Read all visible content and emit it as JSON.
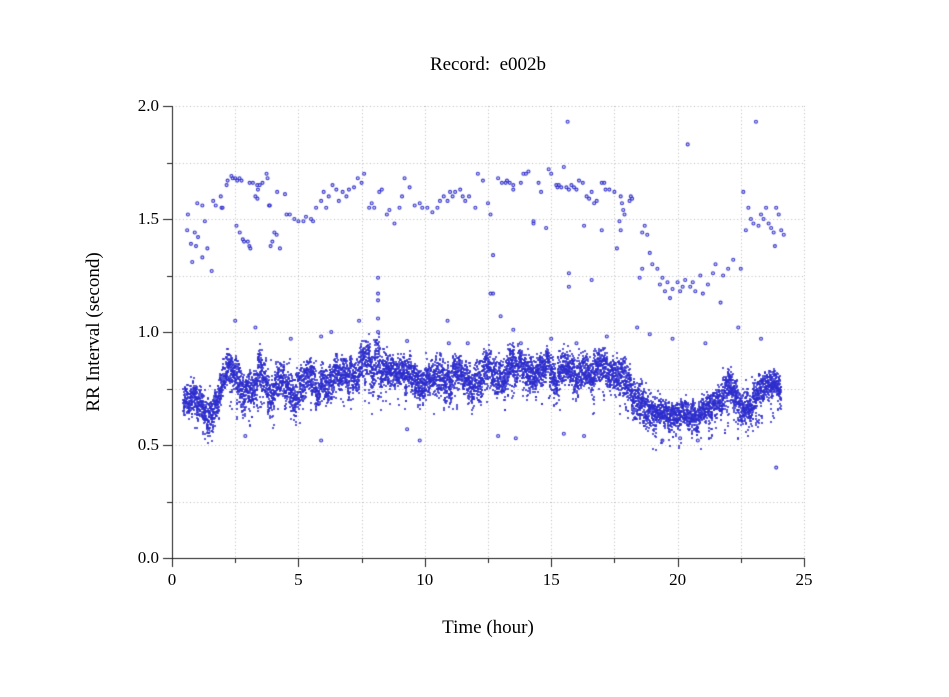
{
  "title": "Record:  e002b",
  "x_axis": {
    "label": "Time (hour)",
    "min": 0,
    "max": 25,
    "major_ticks": [
      0,
      5,
      10,
      15,
      20,
      25
    ],
    "major_tick_labels": [
      "0",
      "5",
      "10",
      "15",
      "20",
      "25"
    ],
    "minor_tick_step": 2.5
  },
  "y_axis": {
    "label": "RR Interval (second)",
    "min": 0.0,
    "max": 2.0,
    "major_ticks": [
      0.0,
      0.5,
      1.0,
      1.5,
      2.0
    ],
    "major_tick_labels": [
      "0.0",
      "0.5",
      "1.0",
      "1.5",
      "2.0"
    ],
    "minor_tick_step": 0.25
  },
  "colors": {
    "point_blue": "#2d2dcd",
    "grid_gray": "#b9b9b9",
    "axis_black": "#1a1a1a",
    "background": "#ffffff",
    "text": "#000000"
  },
  "chart_data": {
    "type": "scatter",
    "title": "Record:  e002b",
    "xlabel": "Time (hour)",
    "ylabel": "RR Interval (second)",
    "xlim": [
      0,
      25
    ],
    "ylim": [
      0.0,
      2.0
    ],
    "grid": "dotted gridlines at every major and minor tick; solid left and bottom axes only",
    "marker": "small open blue circles, ~3px",
    "note": "Dense normal-beat band is described by band_envelope control points [t_hour, rr_low, rr_high]; it is rendered as ~9000 overlapping points. sparse_points are the individually resolvable dots [t_hour, rr_second].",
    "band_time_range": [
      0.45,
      24.1
    ],
    "band_envelope": [
      [
        0.45,
        0.63,
        0.79
      ],
      [
        1.0,
        0.6,
        0.78
      ],
      [
        1.3,
        0.55,
        0.74
      ],
      [
        1.6,
        0.58,
        0.76
      ],
      [
        1.9,
        0.66,
        0.82
      ],
      [
        2.2,
        0.7,
        0.92
      ],
      [
        2.5,
        0.68,
        0.9
      ],
      [
        2.8,
        0.6,
        0.82
      ],
      [
        3.1,
        0.64,
        0.85
      ],
      [
        3.4,
        0.7,
        0.92
      ],
      [
        3.7,
        0.66,
        0.88
      ],
      [
        4.0,
        0.62,
        0.84
      ],
      [
        4.3,
        0.64,
        0.86
      ],
      [
        4.6,
        0.66,
        0.88
      ],
      [
        5.0,
        0.62,
        0.85
      ],
      [
        5.4,
        0.68,
        0.88
      ],
      [
        5.8,
        0.64,
        0.85
      ],
      [
        6.2,
        0.68,
        0.88
      ],
      [
        6.6,
        0.7,
        0.9
      ],
      [
        7.0,
        0.68,
        0.89
      ],
      [
        7.4,
        0.74,
        0.95
      ],
      [
        7.8,
        0.7,
        0.96
      ],
      [
        8.15,
        0.68,
        0.97
      ],
      [
        8.5,
        0.72,
        0.9
      ],
      [
        9.0,
        0.7,
        0.89
      ],
      [
        9.5,
        0.72,
        0.9
      ],
      [
        10.0,
        0.7,
        0.88
      ],
      [
        10.5,
        0.66,
        0.88
      ],
      [
        11.0,
        0.7,
        0.9
      ],
      [
        11.5,
        0.72,
        0.9
      ],
      [
        12.0,
        0.66,
        0.89
      ],
      [
        12.5,
        0.7,
        0.92
      ],
      [
        13.0,
        0.73,
        0.93
      ],
      [
        13.5,
        0.75,
        0.94
      ],
      [
        14.0,
        0.73,
        0.92
      ],
      [
        14.5,
        0.75,
        0.94
      ],
      [
        15.0,
        0.71,
        0.92
      ],
      [
        15.5,
        0.73,
        0.92
      ],
      [
        16.0,
        0.69,
        0.9
      ],
      [
        16.5,
        0.7,
        0.9
      ],
      [
        17.0,
        0.72,
        0.92
      ],
      [
        17.5,
        0.71,
        0.9
      ],
      [
        18.0,
        0.67,
        0.89
      ],
      [
        18.4,
        0.62,
        0.84
      ],
      [
        18.8,
        0.58,
        0.78
      ],
      [
        19.2,
        0.55,
        0.72
      ],
      [
        19.6,
        0.52,
        0.67
      ],
      [
        20.0,
        0.54,
        0.69
      ],
      [
        20.4,
        0.55,
        0.71
      ],
      [
        20.8,
        0.54,
        0.7
      ],
      [
        21.2,
        0.56,
        0.72
      ],
      [
        21.6,
        0.58,
        0.76
      ],
      [
        22.0,
        0.64,
        0.84
      ],
      [
        22.3,
        0.6,
        0.8
      ],
      [
        22.7,
        0.58,
        0.78
      ],
      [
        23.1,
        0.62,
        0.8
      ],
      [
        23.5,
        0.66,
        0.82
      ],
      [
        23.8,
        0.68,
        0.83
      ],
      [
        24.1,
        0.67,
        0.81
      ]
    ],
    "sparse_points": [
      [
        0.6,
        1.45
      ],
      [
        0.63,
        1.52
      ],
      [
        0.75,
        1.39
      ],
      [
        0.8,
        1.31
      ],
      [
        0.9,
        1.44
      ],
      [
        0.95,
        1.38
      ],
      [
        1.0,
        1.57
      ],
      [
        1.03,
        1.42
      ],
      [
        1.2,
        1.56
      ],
      [
        1.2,
        1.33
      ],
      [
        1.3,
        1.49
      ],
      [
        1.4,
        1.37
      ],
      [
        1.57,
        1.27
      ],
      [
        1.63,
        1.58
      ],
      [
        1.73,
        1.56
      ],
      [
        1.93,
        1.6
      ],
      [
        1.96,
        1.55
      ],
      [
        2.0,
        1.55
      ],
      [
        2.16,
        1.65
      ],
      [
        2.2,
        1.67
      ],
      [
        2.35,
        1.69
      ],
      [
        2.4,
        1.68
      ],
      [
        2.5,
        1.68
      ],
      [
        2.55,
        1.47
      ],
      [
        2.58,
        1.67
      ],
      [
        2.67,
        1.68
      ],
      [
        2.68,
        1.44
      ],
      [
        2.75,
        1.67
      ],
      [
        2.8,
        1.41
      ],
      [
        2.85,
        1.4
      ],
      [
        3.0,
        1.4
      ],
      [
        3.06,
        1.38
      ],
      [
        3.07,
        1.66
      ],
      [
        3.1,
        1.37
      ],
      [
        3.2,
        1.66
      ],
      [
        3.3,
        1.6
      ],
      [
        3.37,
        1.65
      ],
      [
        3.38,
        1.59
      ],
      [
        3.4,
        1.63
      ],
      [
        3.47,
        1.65
      ],
      [
        3.58,
        1.66
      ],
      [
        3.74,
        1.7
      ],
      [
        3.78,
        1.68
      ],
      [
        3.84,
        1.56
      ],
      [
        3.87,
        1.56
      ],
      [
        3.9,
        1.38
      ],
      [
        3.97,
        1.4
      ],
      [
        4.05,
        1.44
      ],
      [
        4.14,
        1.43
      ],
      [
        4.16,
        1.62
      ],
      [
        4.27,
        1.37
      ],
      [
        4.47,
        1.61
      ],
      [
        4.53,
        1.52
      ],
      [
        4.66,
        1.52
      ],
      [
        4.84,
        1.5
      ],
      [
        5.0,
        1.49
      ],
      [
        5.2,
        1.49
      ],
      [
        5.3,
        1.51
      ],
      [
        5.5,
        1.5
      ],
      [
        5.58,
        1.49
      ],
      [
        5.7,
        1.55
      ],
      [
        5.9,
        1.58
      ],
      [
        6.0,
        1.62
      ],
      [
        6.1,
        1.55
      ],
      [
        6.2,
        1.6
      ],
      [
        6.35,
        1.65
      ],
      [
        6.5,
        1.63
      ],
      [
        6.6,
        1.58
      ],
      [
        6.75,
        1.62
      ],
      [
        6.9,
        1.6
      ],
      [
        7.0,
        1.63
      ],
      [
        7.2,
        1.64
      ],
      [
        7.35,
        1.68
      ],
      [
        7.5,
        1.66
      ],
      [
        7.6,
        1.7
      ],
      [
        7.8,
        1.55
      ],
      [
        7.9,
        1.57
      ],
      [
        8.0,
        1.55
      ],
      [
        8.2,
        1.62
      ],
      [
        8.3,
        1.63
      ],
      [
        8.5,
        1.52
      ],
      [
        8.6,
        1.54
      ],
      [
        8.8,
        1.48
      ],
      [
        9.0,
        1.55
      ],
      [
        9.1,
        1.6
      ],
      [
        9.2,
        1.68
      ],
      [
        9.4,
        1.64
      ],
      [
        9.6,
        1.56
      ],
      [
        9.8,
        1.57
      ],
      [
        9.9,
        1.55
      ],
      [
        10.1,
        1.55
      ],
      [
        10.3,
        1.53
      ],
      [
        10.5,
        1.55
      ],
      [
        10.6,
        1.58
      ],
      [
        10.75,
        1.6
      ],
      [
        10.9,
        1.58
      ],
      [
        11.0,
        1.62
      ],
      [
        11.1,
        1.6
      ],
      [
        11.2,
        1.62
      ],
      [
        11.4,
        1.63
      ],
      [
        11.5,
        1.6
      ],
      [
        11.6,
        1.58
      ],
      [
        11.75,
        1.6
      ],
      [
        12.0,
        1.55
      ],
      [
        12.1,
        1.7
      ],
      [
        12.3,
        1.67
      ],
      [
        12.5,
        1.57
      ],
      [
        12.6,
        1.52
      ],
      [
        12.7,
        1.34
      ],
      [
        12.7,
        1.17
      ],
      [
        12.9,
        1.68
      ],
      [
        13.05,
        1.66
      ],
      [
        13.2,
        1.66
      ],
      [
        13.25,
        1.67
      ],
      [
        13.36,
        1.66
      ],
      [
        13.5,
        1.65
      ],
      [
        13.5,
        1.63
      ],
      [
        13.8,
        1.66
      ],
      [
        13.9,
        1.7
      ],
      [
        14.0,
        1.7
      ],
      [
        14.1,
        1.71
      ],
      [
        14.3,
        1.49
      ],
      [
        14.3,
        1.48
      ],
      [
        14.5,
        1.66
      ],
      [
        14.6,
        1.62
      ],
      [
        14.8,
        1.46
      ],
      [
        14.9,
        1.72
      ],
      [
        15.0,
        1.7
      ],
      [
        15.2,
        1.65
      ],
      [
        15.25,
        1.64
      ],
      [
        15.3,
        1.65
      ],
      [
        15.4,
        1.64
      ],
      [
        15.5,
        1.73
      ],
      [
        15.6,
        1.64
      ],
      [
        15.65,
        1.93
      ],
      [
        15.7,
        1.63
      ],
      [
        15.7,
        1.26
      ],
      [
        15.7,
        1.2
      ],
      [
        15.8,
        1.65
      ],
      [
        15.9,
        1.64
      ],
      [
        16.0,
        1.63
      ],
      [
        16.1,
        1.67
      ],
      [
        16.25,
        1.66
      ],
      [
        16.3,
        1.47
      ],
      [
        16.4,
        1.6
      ],
      [
        16.5,
        1.59
      ],
      [
        16.6,
        1.62
      ],
      [
        16.6,
        1.23
      ],
      [
        16.7,
        1.57
      ],
      [
        16.8,
        1.58
      ],
      [
        17.0,
        1.66
      ],
      [
        17.0,
        1.45
      ],
      [
        17.1,
        1.66
      ],
      [
        17.15,
        1.63
      ],
      [
        17.3,
        1.63
      ],
      [
        17.5,
        1.62
      ],
      [
        17.6,
        1.37
      ],
      [
        17.7,
        1.49
      ],
      [
        17.75,
        1.6
      ],
      [
        17.75,
        1.45
      ],
      [
        17.8,
        1.57
      ],
      [
        17.85,
        1.54
      ],
      [
        17.9,
        1.52
      ],
      [
        18.1,
        1.58
      ],
      [
        18.15,
        1.6
      ],
      [
        18.2,
        1.59
      ],
      [
        18.5,
        1.24
      ],
      [
        18.6,
        1.44
      ],
      [
        18.6,
        1.28
      ],
      [
        18.7,
        1.47
      ],
      [
        18.8,
        1.43
      ],
      [
        18.9,
        1.35
      ],
      [
        19.0,
        1.3
      ],
      [
        19.2,
        1.28
      ],
      [
        19.3,
        1.21
      ],
      [
        19.4,
        1.24
      ],
      [
        19.5,
        1.18
      ],
      [
        19.6,
        1.22
      ],
      [
        19.7,
        1.15
      ],
      [
        19.8,
        1.19
      ],
      [
        20.0,
        1.22
      ],
      [
        20.1,
        1.18
      ],
      [
        20.2,
        1.2
      ],
      [
        20.3,
        1.23
      ],
      [
        20.4,
        1.83
      ],
      [
        20.5,
        1.2
      ],
      [
        20.6,
        1.22
      ],
      [
        20.7,
        1.18
      ],
      [
        20.9,
        1.25
      ],
      [
        21.0,
        1.17
      ],
      [
        21.2,
        1.21
      ],
      [
        21.4,
        1.26
      ],
      [
        21.5,
        1.3
      ],
      [
        21.7,
        1.13
      ],
      [
        21.8,
        1.25
      ],
      [
        22.0,
        1.28
      ],
      [
        22.2,
        1.32
      ],
      [
        22.5,
        1.28
      ],
      [
        22.6,
        1.62
      ],
      [
        22.7,
        1.45
      ],
      [
        22.8,
        1.55
      ],
      [
        22.9,
        1.5
      ],
      [
        23.0,
        1.48
      ],
      [
        23.1,
        1.93
      ],
      [
        23.2,
        1.47
      ],
      [
        23.3,
        1.52
      ],
      [
        23.4,
        1.5
      ],
      [
        23.5,
        1.55
      ],
      [
        23.6,
        1.48
      ],
      [
        23.7,
        1.46
      ],
      [
        23.8,
        1.44
      ],
      [
        23.85,
        1.38
      ],
      [
        23.9,
        1.55
      ],
      [
        24.0,
        1.52
      ],
      [
        24.1,
        1.45
      ],
      [
        24.2,
        1.43
      ],
      [
        2.5,
        1.05
      ],
      [
        3.3,
        1.02
      ],
      [
        4.7,
        0.97
      ],
      [
        5.9,
        0.98
      ],
      [
        6.3,
        1.0
      ],
      [
        7.4,
        1.05
      ],
      [
        8.15,
        1.24
      ],
      [
        8.15,
        1.17
      ],
      [
        8.15,
        1.14
      ],
      [
        8.15,
        1.06
      ],
      [
        8.15,
        1.0
      ],
      [
        9.3,
        0.96
      ],
      [
        10.9,
        1.05
      ],
      [
        10.95,
        0.95
      ],
      [
        11.7,
        0.95
      ],
      [
        12.6,
        1.17
      ],
      [
        13.0,
        1.07
      ],
      [
        13.5,
        1.01
      ],
      [
        13.8,
        0.95
      ],
      [
        15.0,
        0.97
      ],
      [
        16.0,
        0.95
      ],
      [
        17.2,
        0.98
      ],
      [
        18.4,
        1.02
      ],
      [
        18.9,
        0.99
      ],
      [
        19.8,
        0.97
      ],
      [
        21.1,
        0.95
      ],
      [
        22.4,
        1.02
      ],
      [
        23.3,
        0.97
      ],
      [
        1.45,
        0.56
      ],
      [
        2.9,
        0.54
      ],
      [
        5.9,
        0.52
      ],
      [
        9.3,
        0.57
      ],
      [
        9.8,
        0.52
      ],
      [
        12.9,
        0.54
      ],
      [
        13.6,
        0.53
      ],
      [
        15.5,
        0.55
      ],
      [
        16.3,
        0.54
      ],
      [
        19.4,
        0.52
      ],
      [
        20.1,
        0.53
      ],
      [
        20.8,
        0.52
      ],
      [
        23.9,
        0.4
      ]
    ]
  }
}
